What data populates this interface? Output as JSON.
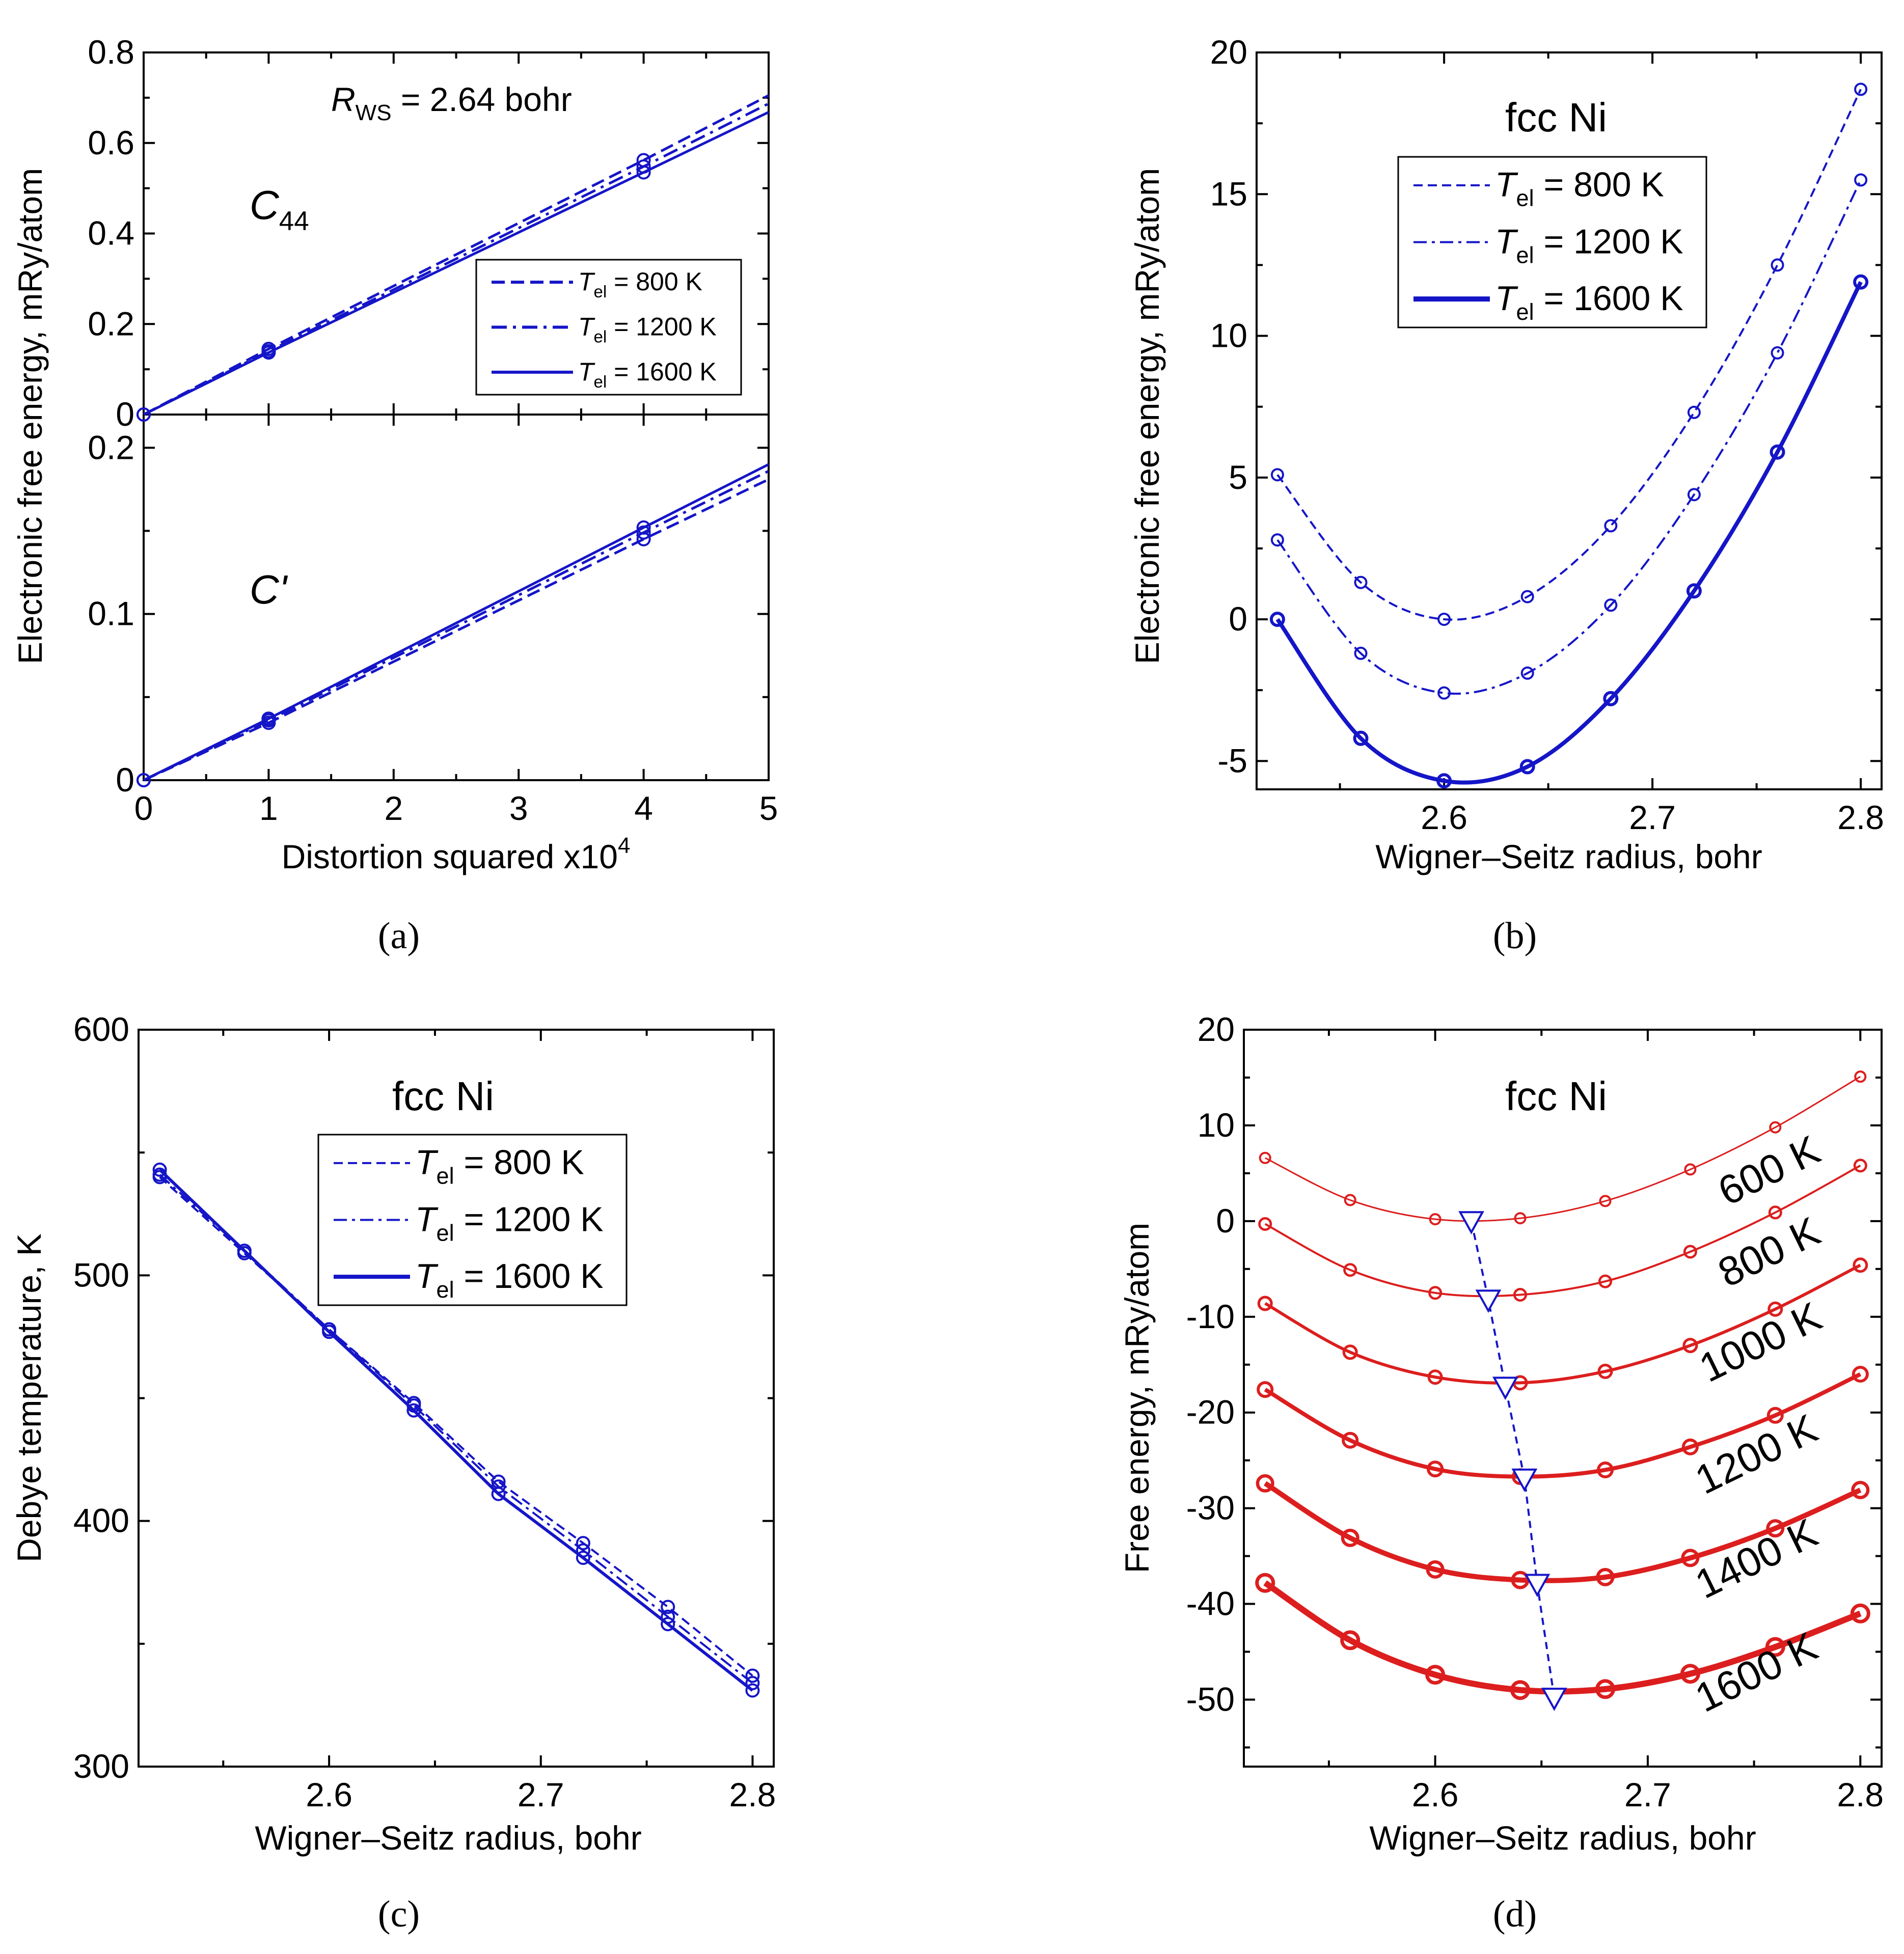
{
  "captions": [
    "(a)",
    "(b)",
    "(c)",
    "(d)"
  ],
  "chart_data": [
    {
      "panel": "a",
      "type": "line",
      "title": "",
      "annotation": "R_WS = 2.64 bohr",
      "annotation_parts": {
        "sym": "R",
        "sub": "WS",
        "rest": " = 2.64 bohr"
      },
      "xlabel": "Distortion squared x10^4",
      "xlabel_parts": {
        "main": "Distortion squared x10",
        "sup": "4"
      },
      "ylabel": "Electronic free energy, mRy/atom",
      "xlim": [
        0,
        5
      ],
      "xticks": [
        "0",
        "1",
        "2",
        "3",
        "4",
        "5"
      ],
      "colors": {
        "series": "#1515c8"
      },
      "subplots": [
        {
          "label": "C44",
          "label_parts": {
            "sym": "C",
            "sub": "44"
          },
          "ylim": [
            0,
            0.8
          ],
          "yticks": [
            "0",
            "0.2",
            "0.4",
            "0.6",
            "0.8"
          ],
          "legend_position": "lower-right",
          "series": [
            {
              "name": "T_el = 800 K",
              "name_parts": {
                "sym": "T",
                "sub": "el",
                "rest": " =   800 K"
              },
              "style": "dashed",
              "x": [
                0,
                1,
                4
              ],
              "y": [
                0,
                0.145,
                0.562
              ],
              "line_end": 0.705
            },
            {
              "name": "T_el = 1200 K",
              "name_parts": {
                "sym": "T",
                "sub": "el",
                "rest": " = 1200 K"
              },
              "style": "dashdot",
              "x": [
                0,
                1,
                4
              ],
              "y": [
                0,
                0.14,
                0.548
              ],
              "line_end": 0.687
            },
            {
              "name": "T_el = 1600 K",
              "name_parts": {
                "sym": "T",
                "sub": "el",
                "rest": " = 1600 K"
              },
              "style": "solid",
              "x": [
                0,
                1,
                4
              ],
              "y": [
                0,
                0.137,
                0.535
              ],
              "line_end": 0.668
            }
          ]
        },
        {
          "label": "C'",
          "label_parts": {
            "sym": "C'",
            "sub": ""
          },
          "ylim": [
            0,
            0.22
          ],
          "yticks": [
            "0",
            "0.1",
            "0.2"
          ],
          "series": [
            {
              "name": "T_el = 800 K",
              "style": "dashed",
              "x": [
                0,
                1,
                4
              ],
              "y": [
                0,
                0.0345,
                0.145
              ],
              "line_end": 0.181
            },
            {
              "name": "T_el = 1200 K",
              "style": "dashdot",
              "x": [
                0,
                1,
                4
              ],
              "y": [
                0,
                0.036,
                0.149
              ],
              "line_end": 0.186
            },
            {
              "name": "T_el = 1600 K",
              "style": "solid",
              "x": [
                0,
                1,
                4
              ],
              "y": [
                0,
                0.037,
                0.152
              ],
              "line_end": 0.19
            }
          ]
        }
      ]
    },
    {
      "panel": "b",
      "type": "line",
      "title": "fcc Ni",
      "xlabel": "Wigner–Seitz radius, bohr",
      "ylabel": "Electronic free energy, mRy/atom",
      "xlim": [
        2.51,
        2.81
      ],
      "ylim": [
        -6,
        20
      ],
      "xticks": [
        "2.6",
        "2.7",
        "2.8"
      ],
      "yticks": [
        "-5",
        "0",
        "5",
        "10",
        "15",
        "20"
      ],
      "legend_position": "upper-left",
      "colors": {
        "series": "#1515c8"
      },
      "series": [
        {
          "name": "T_el = 800 K",
          "name_parts": {
            "sym": "T",
            "sub": "el",
            "rest": " =   800 K"
          },
          "style": "dashed",
          "x": [
            2.52,
            2.56,
            2.6,
            2.64,
            2.68,
            2.72,
            2.76,
            2.8
          ],
          "y": [
            5.1,
            1.3,
            0.0,
            0.8,
            3.3,
            7.3,
            12.5,
            18.7
          ]
        },
        {
          "name": "T_el = 1200 K",
          "name_parts": {
            "sym": "T",
            "sub": "el",
            "rest": " = 1200 K"
          },
          "style": "dashdot",
          "x": [
            2.52,
            2.56,
            2.6,
            2.64,
            2.68,
            2.72,
            2.76,
            2.8
          ],
          "y": [
            2.8,
            -1.2,
            -2.6,
            -1.9,
            0.5,
            4.4,
            9.4,
            15.5
          ]
        },
        {
          "name": "T_el = 1600 K",
          "name_parts": {
            "sym": "T",
            "sub": "el",
            "rest": " = 1600 K"
          },
          "style": "solid",
          "x": [
            2.52,
            2.56,
            2.6,
            2.64,
            2.68,
            2.72,
            2.76,
            2.8
          ],
          "y": [
            0.0,
            -4.2,
            -5.7,
            -5.2,
            -2.8,
            1.0,
            5.9,
            11.9
          ]
        }
      ]
    },
    {
      "panel": "c",
      "type": "line",
      "title": "fcc Ni",
      "xlabel": "Wigner–Seitz radius, bohr",
      "ylabel": "Debye temperature, K",
      "xlim": [
        2.51,
        2.81
      ],
      "ylim": [
        300,
        600
      ],
      "xticks": [
        "2.6",
        "2.7",
        "2.8"
      ],
      "yticks": [
        "300",
        "400",
        "500",
        "600"
      ],
      "legend_position": "upper-right",
      "colors": {
        "series": "#1515c8"
      },
      "series": [
        {
          "name": "T_el = 800 K",
          "name_parts": {
            "sym": "T",
            "sub": "el",
            "rest": " =   800 K"
          },
          "style": "dashed",
          "x": [
            2.52,
            2.56,
            2.6,
            2.64,
            2.68,
            2.72,
            2.76,
            2.8
          ],
          "y": [
            540,
            509,
            478,
            448,
            416,
            391,
            365,
            337
          ]
        },
        {
          "name": "T_el = 1200 K",
          "name_parts": {
            "sym": "T",
            "sub": "el",
            "rest": " = 1200 K"
          },
          "style": "dashdot",
          "x": [
            2.52,
            2.56,
            2.6,
            2.64,
            2.68,
            2.72,
            2.76,
            2.8
          ],
          "y": [
            541,
            510,
            478,
            447,
            414,
            388,
            361,
            334
          ]
        },
        {
          "name": "T_el = 1600 K",
          "name_parts": {
            "sym": "T",
            "sub": "el",
            "rest": " = 1600 K"
          },
          "style": "solid",
          "x": [
            2.52,
            2.56,
            2.6,
            2.64,
            2.68,
            2.72,
            2.76,
            2.8
          ],
          "y": [
            543,
            510,
            477,
            445,
            411,
            385,
            358,
            331
          ]
        }
      ]
    },
    {
      "panel": "d",
      "type": "line",
      "title": "fcc Ni",
      "xlabel": "Wigner–Seitz radius, bohr",
      "ylabel": "Free energy, mRy/atom",
      "xlim": [
        2.51,
        2.81
      ],
      "ylim": [
        -57,
        20
      ],
      "xticks": [
        "2.6",
        "2.7",
        "2.8"
      ],
      "yticks": [
        "-50",
        "-40",
        "-30",
        "-20",
        "-10",
        "0",
        "10",
        "20"
      ],
      "colors": {
        "series": "#dc1e1e",
        "minima": "#1515c8"
      },
      "series": [
        {
          "name": "600 K",
          "x": [
            2.52,
            2.56,
            2.6,
            2.64,
            2.68,
            2.72,
            2.76,
            2.8
          ],
          "y": [
            6.6,
            2.2,
            0.2,
            0.3,
            2.1,
            5.4,
            9.8,
            15.1
          ]
        },
        {
          "name": "800 K",
          "x": [
            2.52,
            2.56,
            2.6,
            2.64,
            2.68,
            2.72,
            2.76,
            2.8
          ],
          "y": [
            -0.3,
            -5.1,
            -7.5,
            -7.7,
            -6.3,
            -3.2,
            0.9,
            5.8
          ]
        },
        {
          "name": "1000 K",
          "x": [
            2.52,
            2.56,
            2.6,
            2.64,
            2.68,
            2.72,
            2.76,
            2.8
          ],
          "y": [
            -8.6,
            -13.7,
            -16.3,
            -16.9,
            -15.7,
            -13.0,
            -9.2,
            -4.6
          ]
        },
        {
          "name": "1200 K",
          "x": [
            2.52,
            2.56,
            2.6,
            2.64,
            2.68,
            2.72,
            2.76,
            2.8
          ],
          "y": [
            -17.6,
            -22.9,
            -25.9,
            -26.7,
            -26.0,
            -23.6,
            -20.3,
            -16.0
          ]
        },
        {
          "name": "1400 K",
          "x": [
            2.52,
            2.56,
            2.6,
            2.64,
            2.68,
            2.72,
            2.76,
            2.8
          ],
          "y": [
            -27.4,
            -33.1,
            -36.4,
            -37.5,
            -37.2,
            -35.2,
            -32.1,
            -28.1
          ]
        },
        {
          "name": "1600 K",
          "x": [
            2.52,
            2.56,
            2.6,
            2.64,
            2.68,
            2.72,
            2.76,
            2.8
          ],
          "y": [
            -37.8,
            -43.8,
            -47.4,
            -49.0,
            -48.9,
            -47.3,
            -44.5,
            -41.0
          ]
        }
      ],
      "minima": {
        "x": [
          2.617,
          2.625,
          2.633,
          2.642,
          2.648,
          2.656
        ],
        "y": [
          0.0,
          -8.2,
          -17.3,
          -26.9,
          -37.9,
          -49.8
        ]
      }
    }
  ]
}
